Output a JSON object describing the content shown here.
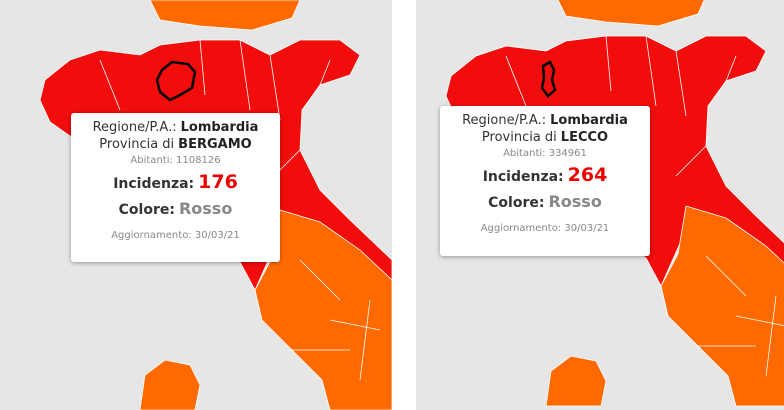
{
  "labels": {
    "region": "Regione/P.A.:",
    "province": "Provincia di",
    "population": "Abitanti:",
    "incidence": "Incidenza:",
    "color": "Colore:",
    "updated": "Aggiornamento:"
  },
  "panels": [
    {
      "region": "Lombardia",
      "province": "BERGAMO",
      "population": 1108126,
      "incidence": 176,
      "color": "Rosso",
      "updated": "30/03/21"
    },
    {
      "region": "Lombardia",
      "province": "LECCO",
      "population": 334961,
      "incidence": 264,
      "color": "Rosso",
      "updated": "30/03/21"
    }
  ]
}
